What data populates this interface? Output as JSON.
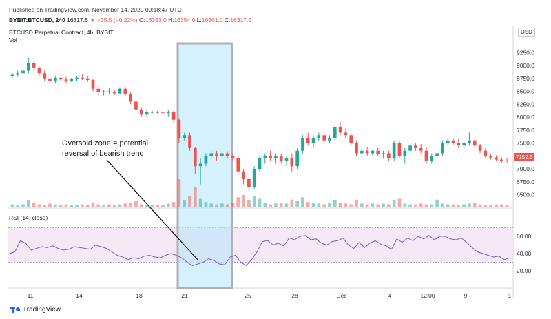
{
  "header": {
    "publish_text": "Published on TradingView.com, November 14, 2020 00:18:47 UTC",
    "symbol_ohlc_prefix": "BYBIT:BTCUSD, 240",
    "last_price": "16317.5",
    "change": "−35.5 (−0.22%)",
    "open_label": "O:",
    "open_val": "16353.0",
    "high_label": "H:",
    "high_val": "16354.0",
    "low_label": "L:",
    "low_val": "16261.0",
    "close_label": "C:",
    "close_val": "16317.5",
    "down_arrow": "▼"
  },
  "main_pane": {
    "symbol_title": "BTCUSD Perpetual Contract, 4h, BYBIT",
    "vol_label": "Vol",
    "currency": "USD",
    "price_tag": "7152.5",
    "price_ticks": [
      "9250.0",
      "9000.0",
      "8750.0",
      "8500.0",
      "8250.0",
      "8000.0",
      "7750.0",
      "7500.0",
      "7250.0",
      "7000.0",
      "6750.0",
      "6500.0"
    ]
  },
  "rsi_pane": {
    "label": "RSI (14, close)",
    "ticks": [
      "60.00",
      "40.00",
      "20.00"
    ]
  },
  "time_axis": {
    "labels": [
      "11",
      "14",
      "18",
      "21",
      "25",
      "28",
      "Dec",
      "4",
      "12:00",
      "9",
      "1"
    ]
  },
  "annotation": {
    "line1": "Oversold zone = potential",
    "line2": "reversal of bearish trend"
  },
  "footer": {
    "brand": "TradingView"
  },
  "colors": {
    "up": "#26a69a",
    "down": "#ef5350",
    "rsi_line": "#7e57c2",
    "rsi_band": "#f3e5f5",
    "highlight": "#b3e5fc",
    "highlight_border": "#b0b0b0",
    "price_tag_bg": "#ef5350"
  },
  "chart_data": {
    "type": "candlestick",
    "price_ylim": [
      6400,
      9400
    ],
    "candles": [
      {
        "o": 8800,
        "h": 8850,
        "l": 8750,
        "c": 8820
      },
      {
        "o": 8820,
        "h": 8900,
        "l": 8780,
        "c": 8850
      },
      {
        "o": 8850,
        "h": 8950,
        "l": 8800,
        "c": 8900
      },
      {
        "o": 8900,
        "h": 9150,
        "l": 8850,
        "c": 9050
      },
      {
        "o": 9050,
        "h": 9100,
        "l": 8900,
        "c": 8950
      },
      {
        "o": 8950,
        "h": 8980,
        "l": 8800,
        "c": 8850
      },
      {
        "o": 8850,
        "h": 8900,
        "l": 8700,
        "c": 8750
      },
      {
        "o": 8750,
        "h": 8800,
        "l": 8650,
        "c": 8700
      },
      {
        "o": 8700,
        "h": 8800,
        "l": 8650,
        "c": 8760
      },
      {
        "o": 8760,
        "h": 8800,
        "l": 8700,
        "c": 8730
      },
      {
        "o": 8730,
        "h": 8780,
        "l": 8650,
        "c": 8700
      },
      {
        "o": 8700,
        "h": 8760,
        "l": 8680,
        "c": 8740
      },
      {
        "o": 8740,
        "h": 8800,
        "l": 8700,
        "c": 8760
      },
      {
        "o": 8760,
        "h": 8820,
        "l": 8720,
        "c": 8750
      },
      {
        "o": 8750,
        "h": 8790,
        "l": 8680,
        "c": 8720
      },
      {
        "o": 8720,
        "h": 8750,
        "l": 8500,
        "c": 8550
      },
      {
        "o": 8550,
        "h": 8600,
        "l": 8400,
        "c": 8480
      },
      {
        "o": 8480,
        "h": 8520,
        "l": 8420,
        "c": 8500
      },
      {
        "o": 8500,
        "h": 8560,
        "l": 8450,
        "c": 8480
      },
      {
        "o": 8480,
        "h": 8520,
        "l": 8430,
        "c": 8460
      },
      {
        "o": 8460,
        "h": 8580,
        "l": 8440,
        "c": 8550
      },
      {
        "o": 8550,
        "h": 8600,
        "l": 8400,
        "c": 8450
      },
      {
        "o": 8450,
        "h": 8480,
        "l": 8250,
        "c": 8300
      },
      {
        "o": 8300,
        "h": 8320,
        "l": 8100,
        "c": 8150
      },
      {
        "o": 8150,
        "h": 8180,
        "l": 8000,
        "c": 8050
      },
      {
        "o": 8050,
        "h": 8150,
        "l": 8020,
        "c": 8100
      },
      {
        "o": 8100,
        "h": 8130,
        "l": 8060,
        "c": 8100
      },
      {
        "o": 8100,
        "h": 8120,
        "l": 8070,
        "c": 8090
      },
      {
        "o": 8090,
        "h": 8110,
        "l": 8050,
        "c": 8080
      },
      {
        "o": 8080,
        "h": 8150,
        "l": 8000,
        "c": 8100
      },
      {
        "o": 8100,
        "h": 8130,
        "l": 7900,
        "c": 7950
      },
      {
        "o": 7950,
        "h": 7980,
        "l": 7500,
        "c": 7600
      },
      {
        "o": 7600,
        "h": 7700,
        "l": 7550,
        "c": 7650
      },
      {
        "o": 7650,
        "h": 7700,
        "l": 7350,
        "c": 7400
      },
      {
        "o": 7400,
        "h": 7420,
        "l": 6900,
        "c": 7050
      },
      {
        "o": 7050,
        "h": 7200,
        "l": 6700,
        "c": 7100
      },
      {
        "o": 7100,
        "h": 7300,
        "l": 7050,
        "c": 7250
      },
      {
        "o": 7250,
        "h": 7350,
        "l": 7200,
        "c": 7300
      },
      {
        "o": 7300,
        "h": 7350,
        "l": 7150,
        "c": 7250
      },
      {
        "o": 7250,
        "h": 7350,
        "l": 7200,
        "c": 7300
      },
      {
        "o": 7300,
        "h": 7340,
        "l": 7200,
        "c": 7250
      },
      {
        "o": 7250,
        "h": 7300,
        "l": 7150,
        "c": 7200
      },
      {
        "o": 7200,
        "h": 7250,
        "l": 6900,
        "c": 6950
      },
      {
        "o": 6950,
        "h": 7000,
        "l": 6700,
        "c": 6800
      },
      {
        "o": 6800,
        "h": 6850,
        "l": 6550,
        "c": 6650
      },
      {
        "o": 6650,
        "h": 7050,
        "l": 6600,
        "c": 7000
      },
      {
        "o": 7000,
        "h": 7250,
        "l": 6950,
        "c": 7200
      },
      {
        "o": 7200,
        "h": 7300,
        "l": 7100,
        "c": 7250
      },
      {
        "o": 7250,
        "h": 7350,
        "l": 7150,
        "c": 7200
      },
      {
        "o": 7200,
        "h": 7300,
        "l": 7100,
        "c": 7250
      },
      {
        "o": 7250,
        "h": 7300,
        "l": 7100,
        "c": 7150
      },
      {
        "o": 7150,
        "h": 7250,
        "l": 7050,
        "c": 7200
      },
      {
        "o": 7200,
        "h": 7300,
        "l": 6950,
        "c": 7050
      },
      {
        "o": 7050,
        "h": 7400,
        "l": 7000,
        "c": 7350
      },
      {
        "o": 7350,
        "h": 7650,
        "l": 7300,
        "c": 7600
      },
      {
        "o": 7600,
        "h": 7700,
        "l": 7450,
        "c": 7500
      },
      {
        "o": 7500,
        "h": 7650,
        "l": 7400,
        "c": 7600
      },
      {
        "o": 7600,
        "h": 7700,
        "l": 7550,
        "c": 7650
      },
      {
        "o": 7650,
        "h": 7700,
        "l": 7500,
        "c": 7550
      },
      {
        "o": 7550,
        "h": 7650,
        "l": 7500,
        "c": 7600
      },
      {
        "o": 7600,
        "h": 7850,
        "l": 7550,
        "c": 7800
      },
      {
        "o": 7800,
        "h": 7900,
        "l": 7650,
        "c": 7700
      },
      {
        "o": 7700,
        "h": 7780,
        "l": 7600,
        "c": 7650
      },
      {
        "o": 7650,
        "h": 7700,
        "l": 7450,
        "c": 7500
      },
      {
        "o": 7500,
        "h": 7550,
        "l": 7250,
        "c": 7300
      },
      {
        "o": 7300,
        "h": 7400,
        "l": 7200,
        "c": 7350
      },
      {
        "o": 7350,
        "h": 7420,
        "l": 7250,
        "c": 7300
      },
      {
        "o": 7300,
        "h": 7380,
        "l": 7250,
        "c": 7350
      },
      {
        "o": 7350,
        "h": 7400,
        "l": 7250,
        "c": 7280
      },
      {
        "o": 7280,
        "h": 7350,
        "l": 7200,
        "c": 7300
      },
      {
        "o": 7300,
        "h": 7350,
        "l": 7150,
        "c": 7200
      },
      {
        "o": 7200,
        "h": 7550,
        "l": 7150,
        "c": 7500
      },
      {
        "o": 7500,
        "h": 7550,
        "l": 7200,
        "c": 7250
      },
      {
        "o": 7250,
        "h": 7400,
        "l": 7100,
        "c": 7350
      },
      {
        "o": 7350,
        "h": 7500,
        "l": 7300,
        "c": 7450
      },
      {
        "o": 7450,
        "h": 7500,
        "l": 7350,
        "c": 7400
      },
      {
        "o": 7400,
        "h": 7480,
        "l": 7300,
        "c": 7350
      },
      {
        "o": 7350,
        "h": 7420,
        "l": 7100,
        "c": 7150
      },
      {
        "o": 7150,
        "h": 7300,
        "l": 7100,
        "c": 7250
      },
      {
        "o": 7250,
        "h": 7350,
        "l": 7200,
        "c": 7300
      },
      {
        "o": 7300,
        "h": 7550,
        "l": 7250,
        "c": 7500
      },
      {
        "o": 7500,
        "h": 7600,
        "l": 7450,
        "c": 7550
      },
      {
        "o": 7550,
        "h": 7600,
        "l": 7450,
        "c": 7500
      },
      {
        "o": 7500,
        "h": 7580,
        "l": 7400,
        "c": 7450
      },
      {
        "o": 7450,
        "h": 7550,
        "l": 7400,
        "c": 7500
      },
      {
        "o": 7500,
        "h": 7700,
        "l": 7450,
        "c": 7550
      },
      {
        "o": 7550,
        "h": 7600,
        "l": 7400,
        "c": 7450
      },
      {
        "o": 7450,
        "h": 7480,
        "l": 7300,
        "c": 7350
      },
      {
        "o": 7350,
        "h": 7400,
        "l": 7200,
        "c": 7250
      },
      {
        "o": 7250,
        "h": 7300,
        "l": 7180,
        "c": 7220
      },
      {
        "o": 7220,
        "h": 7260,
        "l": 7150,
        "c": 7180
      },
      {
        "o": 7180,
        "h": 7220,
        "l": 7120,
        "c": 7160
      },
      {
        "o": 7160,
        "h": 7200,
        "l": 7110,
        "c": 7150
      }
    ],
    "volume": [
      3,
      2,
      3,
      8,
      5,
      3,
      2,
      4,
      3,
      2,
      3,
      2,
      2,
      3,
      2,
      5,
      3,
      2,
      3,
      2,
      3,
      4,
      5,
      7,
      3,
      2,
      2,
      2,
      2,
      4,
      6,
      35,
      8,
      14,
      25,
      10,
      6,
      4,
      3,
      4,
      3,
      5,
      12,
      15,
      8,
      14,
      10,
      5,
      3,
      4,
      5,
      4,
      9,
      7,
      12,
      6,
      5,
      4,
      3,
      5,
      8,
      5,
      4,
      3,
      9,
      4,
      3,
      4,
      3,
      4,
      3,
      8,
      10,
      4,
      3,
      3,
      4,
      3,
      3,
      9,
      4,
      3,
      3,
      2,
      3,
      4,
      5,
      3,
      2,
      2,
      3,
      3,
      2
    ],
    "rsi_ylim": [
      0,
      80
    ],
    "rsi": [
      40,
      42,
      55,
      52,
      44,
      46,
      48,
      47,
      49,
      46,
      44,
      45,
      48,
      47,
      46,
      45,
      50,
      48,
      46,
      42,
      38,
      36,
      33,
      35,
      34,
      37,
      38,
      36,
      35,
      38,
      40,
      38,
      35,
      30,
      26,
      28,
      30,
      34,
      32,
      28,
      27,
      36,
      38,
      30,
      26,
      33,
      42,
      54,
      55,
      50,
      52,
      49,
      58,
      56,
      60,
      61,
      56,
      57,
      52,
      50,
      54,
      55,
      58,
      50,
      46,
      53,
      47,
      52,
      55,
      51,
      49,
      45,
      57,
      53,
      58,
      55,
      60,
      57,
      61,
      56,
      60,
      60,
      57,
      56,
      58,
      53,
      47,
      42,
      40,
      38,
      36,
      37,
      33,
      35
    ]
  }
}
